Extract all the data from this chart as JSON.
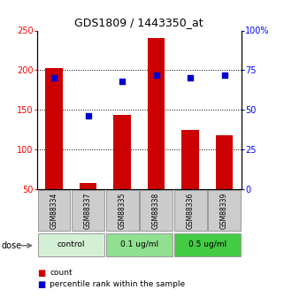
{
  "title": "GDS1809 / 1443350_at",
  "samples": [
    "GSM88334",
    "GSM88337",
    "GSM88335",
    "GSM88338",
    "GSM88336",
    "GSM88339"
  ],
  "counts": [
    203,
    58,
    143,
    240,
    125,
    118
  ],
  "percentile_ranks": [
    70,
    46,
    68,
    72,
    70,
    72
  ],
  "bar_color": "#cc0000",
  "dot_color": "#0000cc",
  "ylim_left": [
    50,
    250
  ],
  "ylim_right": [
    0,
    100
  ],
  "yticks_left": [
    50,
    100,
    150,
    200,
    250
  ],
  "yticks_right": [
    0,
    25,
    50,
    75,
    100
  ],
  "yticklabels_right": [
    "0",
    "25",
    "50",
    "75",
    "100%"
  ],
  "groups": [
    {
      "label": "control",
      "indices": [
        0,
        1
      ],
      "color": "#d4f0d4"
    },
    {
      "label": "0.1 ug/ml",
      "indices": [
        2,
        3
      ],
      "color": "#90e090"
    },
    {
      "label": "0.5 ug/ml",
      "indices": [
        4,
        5
      ],
      "color": "#44cc44"
    }
  ],
  "dose_label": "dose",
  "legend_count_label": "count",
  "legend_pct_label": "percentile rank within the sample",
  "sample_box_color": "#cccccc",
  "bar_bottom": 50,
  "bar_width": 0.5
}
